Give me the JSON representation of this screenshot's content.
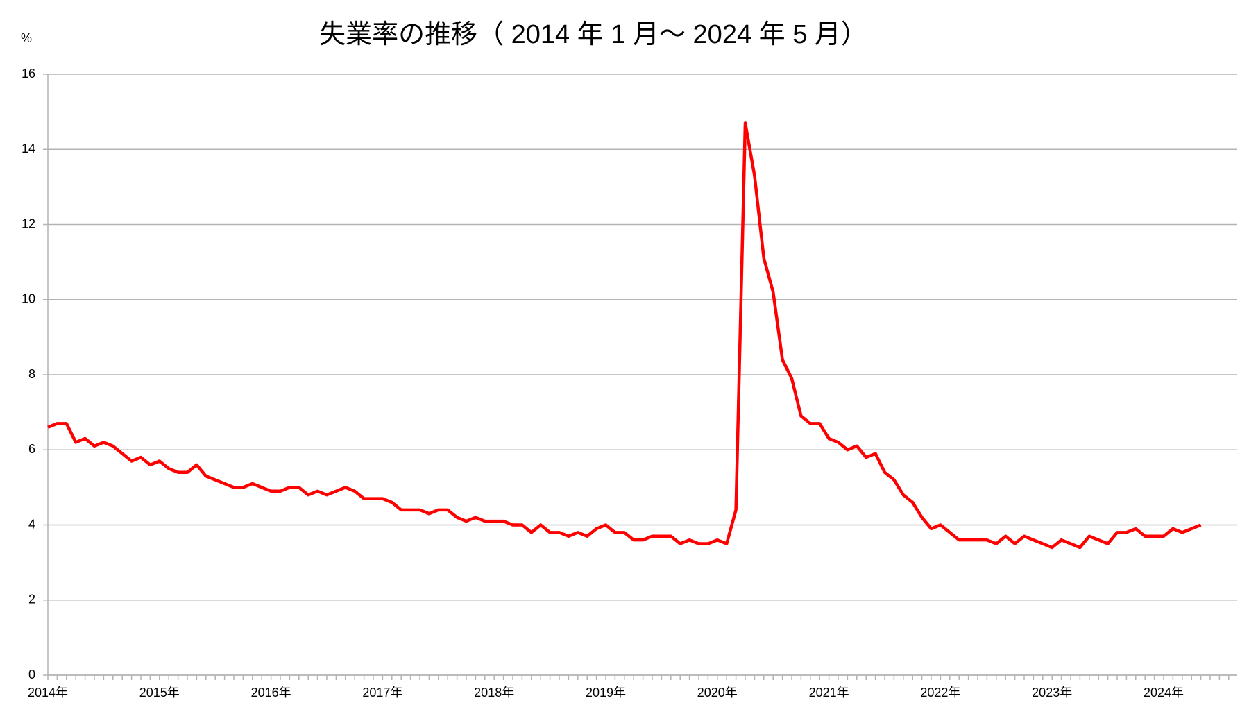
{
  "chart_data": {
    "type": "line",
    "title": "失業率の推移（ 2014 年 1 月～ 2024 年 5 月）",
    "y_label": "%",
    "color": "#ff0000",
    "grid": true,
    "ylim": [
      0,
      16
    ],
    "yticks": [
      0,
      2,
      4,
      6,
      8,
      10,
      12,
      14,
      16
    ],
    "categories": [
      "2014年",
      null,
      null,
      null,
      null,
      null,
      null,
      null,
      null,
      null,
      null,
      null,
      "2015年",
      null,
      null,
      null,
      null,
      null,
      null,
      null,
      null,
      null,
      null,
      null,
      "2016年",
      null,
      null,
      null,
      null,
      null,
      null,
      null,
      null,
      null,
      null,
      null,
      "2017年",
      null,
      null,
      null,
      null,
      null,
      null,
      null,
      null,
      null,
      null,
      null,
      "2018年",
      null,
      null,
      null,
      null,
      null,
      null,
      null,
      null,
      null,
      null,
      null,
      "2019年",
      null,
      null,
      null,
      null,
      null,
      null,
      null,
      null,
      null,
      null,
      null,
      "2020年",
      null,
      null,
      null,
      null,
      null,
      null,
      null,
      null,
      null,
      null,
      null,
      "2021年",
      null,
      null,
      null,
      null,
      null,
      null,
      null,
      null,
      null,
      null,
      null,
      "2022年",
      null,
      null,
      null,
      null,
      null,
      null,
      null,
      null,
      null,
      null,
      null,
      "2023年",
      null,
      null,
      null,
      null,
      null,
      null,
      null,
      null,
      null,
      null,
      null,
      "2024年",
      null,
      null,
      null,
      null
    ],
    "values": [
      6.6,
      6.7,
      6.7,
      6.2,
      6.3,
      6.1,
      6.2,
      6.1,
      5.9,
      5.7,
      5.8,
      5.6,
      5.7,
      5.5,
      5.4,
      5.4,
      5.6,
      5.3,
      5.2,
      5.1,
      5.0,
      5.0,
      5.1,
      5.0,
      4.9,
      4.9,
      5.0,
      5.0,
      4.8,
      4.9,
      4.8,
      4.9,
      5.0,
      4.9,
      4.7,
      4.7,
      4.7,
      4.6,
      4.4,
      4.4,
      4.4,
      4.3,
      4.4,
      4.4,
      4.2,
      4.1,
      4.2,
      4.1,
      4.1,
      4.1,
      4.0,
      4.0,
      3.8,
      4.0,
      3.8,
      3.8,
      3.7,
      3.8,
      3.7,
      3.9,
      4.0,
      3.8,
      3.8,
      3.6,
      3.6,
      3.7,
      3.7,
      3.7,
      3.5,
      3.6,
      3.5,
      3.5,
      3.6,
      3.5,
      4.4,
      14.7,
      13.3,
      11.1,
      10.2,
      8.4,
      7.9,
      6.9,
      6.7,
      6.7,
      6.3,
      6.2,
      6.0,
      6.1,
      5.8,
      5.9,
      5.4,
      5.2,
      4.8,
      4.6,
      4.2,
      3.9,
      4.0,
      3.8,
      3.6,
      3.6,
      3.6,
      3.6,
      3.5,
      3.7,
      3.5,
      3.7,
      3.6,
      3.5,
      3.4,
      3.6,
      3.5,
      3.4,
      3.7,
      3.6,
      3.5,
      3.8,
      3.8,
      3.9,
      3.7,
      3.7,
      3.7,
      3.9,
      3.8,
      3.9,
      4.0
    ]
  }
}
